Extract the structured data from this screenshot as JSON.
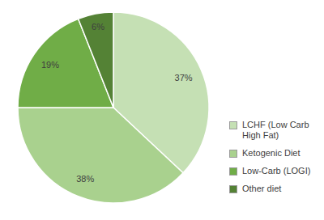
{
  "chart_data": {
    "type": "pie",
    "categories": [
      "LCHF (Low Carb High Fat)",
      "Ketogenic Diet",
      "Low-Carb (LOGI)",
      "Other diet"
    ],
    "values": [
      37,
      38,
      19,
      6
    ],
    "value_labels": [
      "37%",
      "38%",
      "19%",
      "6%"
    ],
    "colors": [
      "#c5e0b4",
      "#a9d18e",
      "#70ad47",
      "#548235"
    ],
    "data_labels": true,
    "legend": "right"
  }
}
